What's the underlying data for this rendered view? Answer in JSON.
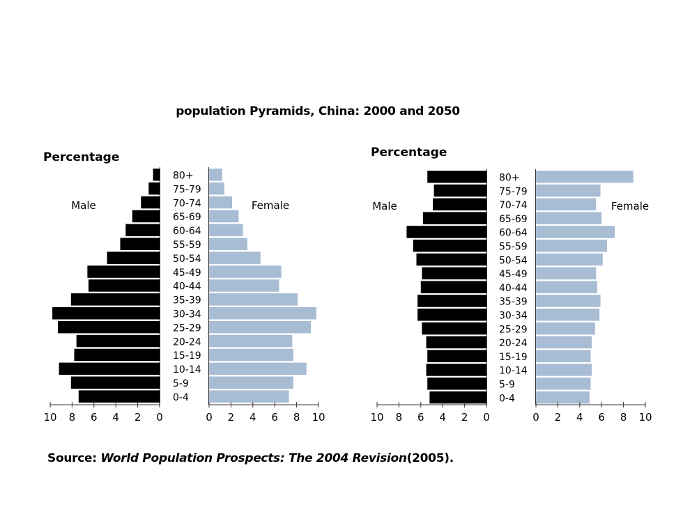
{
  "title": "population Pyramids, China: 2000 and 2050",
  "source": {
    "label": "Source:",
    "work": "World Population Prospects: The 2004 Revision",
    "year": "(2005)."
  },
  "chart_data": [
    {
      "type": "bar",
      "orientation": "horizontal-pyramid",
      "title": "",
      "ylabel": "Percentage",
      "categories": [
        "80+",
        "75-79",
        "70-74",
        "65-69",
        "60-64",
        "55-59",
        "50-54",
        "45-49",
        "40-44",
        "35-39",
        "30-34",
        "25-29",
        "20-24",
        "15-19",
        "10-14",
        "5-9",
        "0-4"
      ],
      "series": [
        {
          "name": "Male",
          "color": "#000000",
          "values": [
            0.6,
            1.0,
            1.7,
            2.5,
            3.1,
            3.6,
            4.8,
            6.6,
            6.5,
            8.1,
            9.8,
            9.3,
            7.6,
            7.8,
            9.2,
            8.1,
            7.4
          ]
        },
        {
          "name": "Female",
          "color": "#a8bcd4",
          "values": [
            1.2,
            1.4,
            2.1,
            2.7,
            3.1,
            3.5,
            4.7,
            6.6,
            6.4,
            8.1,
            9.8,
            9.3,
            7.6,
            7.7,
            8.9,
            7.7,
            7.3
          ]
        }
      ],
      "xlim": [
        0,
        10
      ],
      "xticks": [
        "10",
        "8",
        "6",
        "4",
        "2",
        "0"
      ],
      "xticks_right": [
        "0",
        "2",
        "4",
        "6",
        "8",
        "10"
      ]
    },
    {
      "type": "bar",
      "orientation": "horizontal-pyramid",
      "title": "",
      "ylabel": "Percentage",
      "categories": [
        "80+",
        "75-79",
        "70-74",
        "65-69",
        "60-64",
        "55-59",
        "50-54",
        "45-49",
        "40-44",
        "35-39",
        "30-34",
        "25-29",
        "20-24",
        "15-19",
        "10-14",
        "5-9",
        "0-4"
      ],
      "series": [
        {
          "name": "Male",
          "color": "#000000",
          "values": [
            5.4,
            4.8,
            4.9,
            5.8,
            7.3,
            6.7,
            6.4,
            5.9,
            6.0,
            6.3,
            6.3,
            5.9,
            5.5,
            5.4,
            5.5,
            5.4,
            5.2
          ]
        },
        {
          "name": "Female",
          "color": "#a8bcd4",
          "values": [
            8.9,
            5.9,
            5.5,
            6.0,
            7.2,
            6.5,
            6.1,
            5.5,
            5.6,
            5.9,
            5.8,
            5.4,
            5.1,
            5.0,
            5.1,
            5.0,
            4.9
          ]
        }
      ],
      "xlim": [
        0,
        10
      ],
      "xticks": [
        "10",
        "8",
        "6",
        "4",
        "2",
        "0"
      ],
      "xticks_right": [
        "0",
        "2",
        "4",
        "6",
        "8",
        "10"
      ]
    }
  ]
}
